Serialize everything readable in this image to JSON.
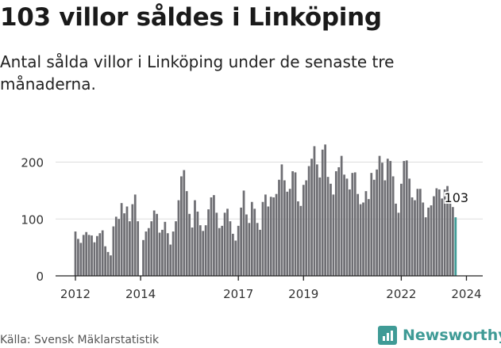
{
  "header": {
    "title": "103 villor såldes i Linköping",
    "subtitle": "Antal sålda villor i Linköping under de senaste tre månaderna."
  },
  "footer": {
    "source": "Källa: Svensk Mäklarstatistik",
    "brand": "Newsworthy",
    "brand_icon": "bar-chart-icon"
  },
  "colors": {
    "bar": "#6e6e73",
    "highlight": "#3f9b96",
    "axis": "#222222",
    "grid": "#dddddd"
  },
  "chart_data": {
    "type": "bar",
    "title": "103 villor såldes i Linköping",
    "subtitle": "Antal sålda villor i Linköping under de senaste tre månaderna.",
    "xlabel": "",
    "ylabel": "",
    "ylim": [
      0,
      230
    ],
    "yticks": [
      0,
      100,
      200
    ],
    "xticks": [
      "2012",
      "2014",
      "2017",
      "2019",
      "2022",
      "2024"
    ],
    "x_start": "2012-01",
    "frequency": "monthly",
    "highlight_label": "103",
    "values": [
      78,
      65,
      58,
      72,
      77,
      72,
      71,
      59,
      70,
      75,
      80,
      52,
      42,
      36,
      87,
      104,
      100,
      128,
      110,
      122,
      96,
      126,
      143,
      96,
      0,
      63,
      78,
      84,
      96,
      115,
      109,
      76,
      81,
      95,
      75,
      55,
      78,
      96,
      133,
      175,
      186,
      149,
      109,
      85,
      133,
      113,
      89,
      79,
      89,
      117,
      138,
      142,
      111,
      84,
      88,
      111,
      118,
      96,
      74,
      62,
      88,
      120,
      150,
      108,
      93,
      130,
      118,
      93,
      81,
      130,
      143,
      122,
      139,
      138,
      144,
      169,
      196,
      168,
      148,
      153,
      184,
      182,
      131,
      123,
      160,
      168,
      193,
      206,
      228,
      196,
      173,
      222,
      231,
      174,
      162,
      143,
      184,
      191,
      211,
      178,
      171,
      152,
      181,
      182,
      144,
      126,
      129,
      149,
      135,
      181,
      169,
      187,
      211,
      199,
      168,
      206,
      202,
      175,
      127,
      111,
      162,
      202,
      203,
      171,
      138,
      133,
      153,
      153,
      129,
      103,
      120,
      124,
      140,
      154,
      152,
      136,
      152,
      158,
      132,
      121,
      103
    ]
  }
}
